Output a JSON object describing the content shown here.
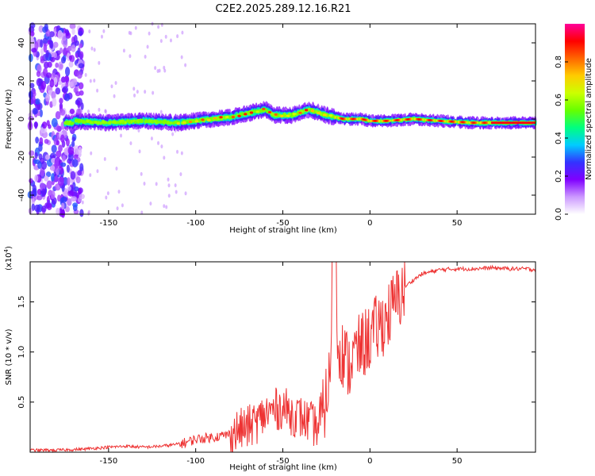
{
  "title": "C2E2.2025.289.12.16.R21",
  "chart_data": [
    {
      "type": "heatmap",
      "title": "C2E2.2025.289.12.16.R21",
      "xlabel": "Height of straight line (km)",
      "ylabel": "Frequency (Hz)",
      "xlim": [
        -195,
        95
      ],
      "ylim": [
        -50,
        50
      ],
      "xticks": [
        -150,
        -100,
        -50,
        0,
        50
      ],
      "yticks": [
        -40,
        -20,
        0,
        20,
        40
      ],
      "colorbar": {
        "label": "Normalized spectral amplitude",
        "range": [
          0,
          1
        ],
        "ticks": [
          "0.0",
          "0.2",
          "0.4",
          "0.6",
          "0.8"
        ],
        "colors": [
          "#ffffff",
          "#cc99ff",
          "#8000ff",
          "#3333ff",
          "#00ccff",
          "#00ff80",
          "#66ff00",
          "#ccff00",
          "#ffcc00",
          "#ff6600",
          "#ff0000",
          "#ff0099"
        ]
      },
      "ridge_center_hz": [
        {
          "x": -170,
          "f": -1
        },
        {
          "x": -150,
          "f": -2
        },
        {
          "x": -130,
          "f": -1
        },
        {
          "x": -110,
          "f": -2
        },
        {
          "x": -100,
          "f": -1
        },
        {
          "x": -90,
          "f": 0
        },
        {
          "x": -80,
          "f": 1
        },
        {
          "x": -70,
          "f": 3
        },
        {
          "x": -60,
          "f": 5
        },
        {
          "x": -55,
          "f": 2
        },
        {
          "x": -45,
          "f": 2
        },
        {
          "x": -35,
          "f": 5
        },
        {
          "x": -25,
          "f": 2
        },
        {
          "x": -15,
          "f": 0
        },
        {
          "x": -5,
          "f": 0
        },
        {
          "x": 0,
          "f": -1
        },
        {
          "x": 10,
          "f": -1
        },
        {
          "x": 25,
          "f": 0
        },
        {
          "x": 40,
          "f": -1
        },
        {
          "x": 60,
          "f": -2
        },
        {
          "x": 80,
          "f": -2
        },
        {
          "x": 95,
          "f": -2
        }
      ]
    },
    {
      "type": "line",
      "xlabel": "Height of straight line (km)",
      "ylabel": "SNR (10 * v/v)",
      "y_multiplier": "(x10",
      "y_multiplier_exp": "4",
      "y_multiplier_close": ")",
      "xlim": [
        -195,
        95
      ],
      "ylim": [
        0,
        1.9
      ],
      "xticks": [
        -150,
        -100,
        -50,
        0,
        50
      ],
      "yticks": [
        "0.5",
        "1.0",
        "1.5"
      ],
      "color": "#ee3333",
      "series": [
        {
          "name": "SNR",
          "x": [
            -195,
            -180,
            -165,
            -150,
            -140,
            -130,
            -120,
            -110,
            -105,
            -100,
            -90,
            -80,
            -75,
            -70,
            -65,
            -60,
            -55,
            -50,
            -45,
            -40,
            -35,
            -30,
            -28,
            -25,
            -22,
            -20,
            -18,
            -15,
            -12,
            -10,
            -5,
            0,
            5,
            10,
            15,
            20,
            25,
            30,
            40,
            50,
            60,
            70,
            80,
            90,
            95
          ],
          "y": [
            0.02,
            0.02,
            0.03,
            0.05,
            0.06,
            0.05,
            0.06,
            0.08,
            0.1,
            0.13,
            0.15,
            0.18,
            0.22,
            0.25,
            0.3,
            0.38,
            0.42,
            0.45,
            0.38,
            0.35,
            0.3,
            0.25,
            0.3,
            0.55,
            0.9,
            1.3,
            1.1,
            0.95,
            0.85,
            0.95,
            1.05,
            1.15,
            1.25,
            1.35,
            1.5,
            1.65,
            1.72,
            1.78,
            1.82,
            1.83,
            1.83,
            1.84,
            1.83,
            1.83,
            1.82
          ]
        }
      ]
    }
  ]
}
